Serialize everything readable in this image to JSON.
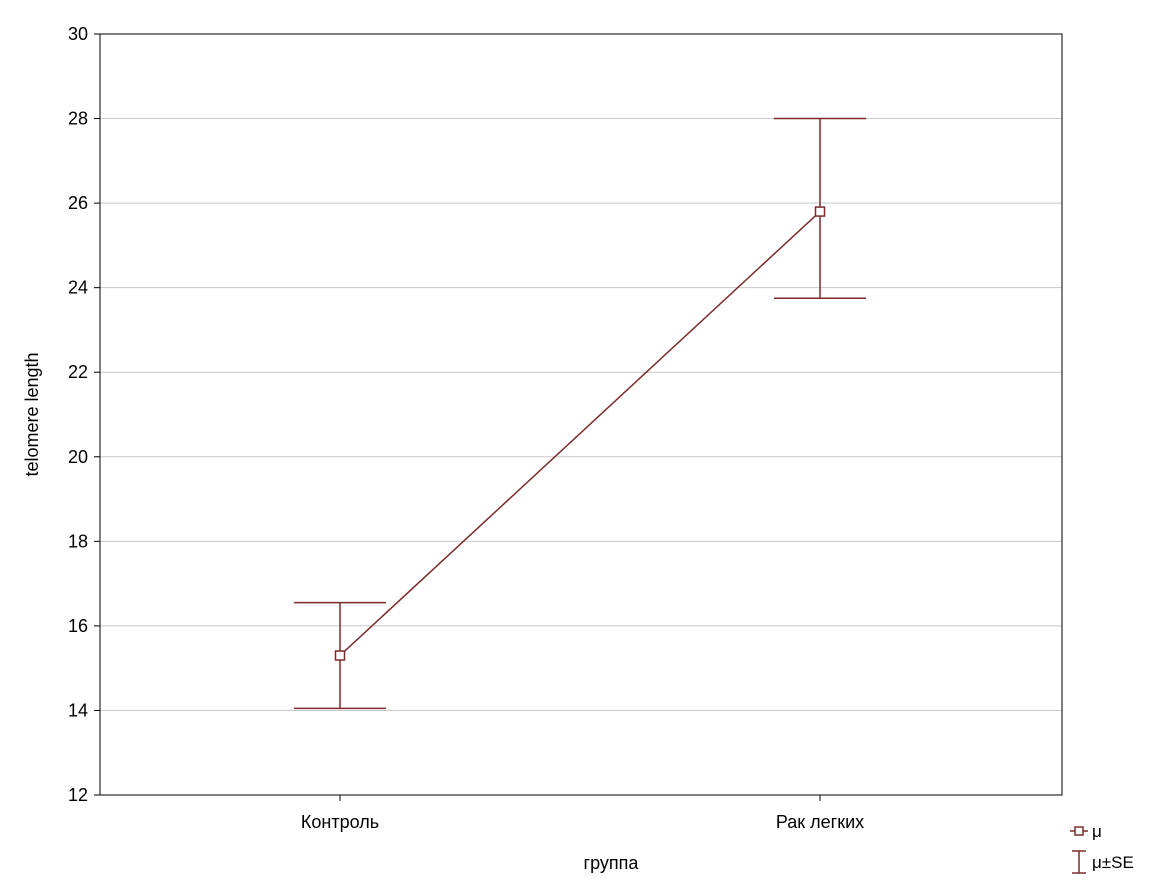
{
  "chart_data": {
    "type": "line",
    "categories": [
      "Контроль",
      "Рак легких"
    ],
    "series": [
      {
        "name": "μ",
        "values": [
          15.3,
          25.8
        ],
        "se_lower": [
          14.05,
          23.75
        ],
        "se_upper": [
          16.55,
          28.0
        ]
      }
    ],
    "xlabel": "группа",
    "ylabel": "telomere length",
    "ylim": [
      12,
      30
    ],
    "yticks": [
      12,
      14,
      16,
      18,
      20,
      22,
      24,
      26,
      28,
      30
    ],
    "grid": true,
    "legend": {
      "placement": "bottom-right",
      "entries": [
        {
          "marker": "square-line",
          "label": "μ"
        },
        {
          "marker": "error-bar",
          "label": "μ±SE"
        }
      ]
    },
    "colors": {
      "series": "#7a2a2a",
      "grid": "#c8c8c8",
      "axis": "#000000",
      "background": "#ffffff"
    }
  }
}
